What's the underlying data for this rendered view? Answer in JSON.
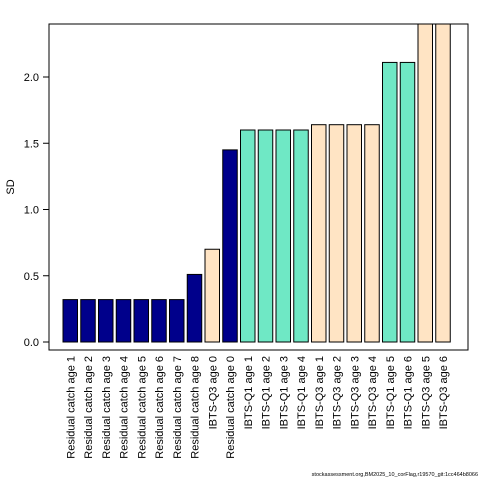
{
  "chart_data": {
    "type": "bar",
    "title": "",
    "xlabel": "",
    "ylabel": "SD",
    "ylim": [
      0,
      2.4
    ],
    "yticks": [
      "0.0",
      "0.5",
      "1.0",
      "1.5",
      "2.0"
    ],
    "grid": false,
    "legend": "none",
    "colors": {
      "Residual": "#00008B",
      "IBTS-Q1": "#6FE8C5",
      "IBTS-Q3": "#FFE4C4",
      "outline": "#000000"
    },
    "categories": [
      "Residual catch age 1",
      "Residual catch age 2",
      "Residual catch age 3",
      "Residual catch age 4",
      "Residual catch age 5",
      "Residual catch age 6",
      "Residual catch age 7",
      "Residual catch age 8",
      "IBTS-Q3 age 0",
      "Residual catch age 0",
      "IBTS-Q1 age 1",
      "IBTS-Q1 age 2",
      "IBTS-Q1 age 3",
      "IBTS-Q1 age 4",
      "IBTS-Q3 age 1",
      "IBTS-Q3 age 2",
      "IBTS-Q3 age 3",
      "IBTS-Q3 age 4",
      "IBTS-Q1 age 5",
      "IBTS-Q1 age 6",
      "IBTS-Q3 age 5",
      "IBTS-Q3 age 6"
    ],
    "values": [
      0.32,
      0.32,
      0.32,
      0.32,
      0.32,
      0.32,
      0.32,
      0.51,
      0.7,
      1.45,
      1.6,
      1.6,
      1.6,
      1.6,
      1.64,
      1.64,
      1.64,
      1.64,
      2.11,
      2.11,
      2.4,
      2.4
    ],
    "groups": [
      "Residual",
      "Residual",
      "Residual",
      "Residual",
      "Residual",
      "Residual",
      "Residual",
      "Residual",
      "IBTS-Q3",
      "Residual",
      "IBTS-Q1",
      "IBTS-Q1",
      "IBTS-Q1",
      "IBTS-Q1",
      "IBTS-Q3",
      "IBTS-Q3",
      "IBTS-Q3",
      "IBTS-Q3",
      "IBTS-Q1",
      "IBTS-Q1",
      "IBTS-Q3",
      "IBTS-Q3"
    ]
  },
  "footer": "stockassessment.org,BM2025_10_corFlag,r19570_git:1cc464b8066"
}
